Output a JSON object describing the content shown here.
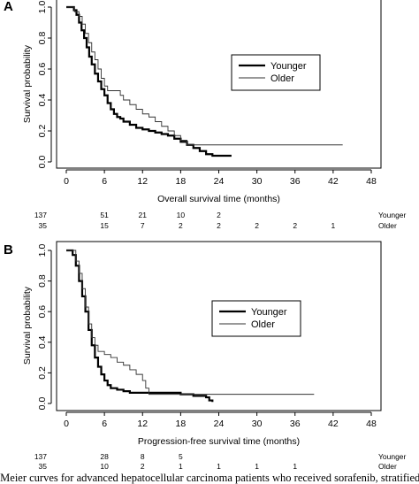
{
  "chart_data": [
    {
      "panel": "A",
      "type": "line",
      "xlabel": "Overall survival time (months)",
      "ylabel": "Survival probability",
      "xlim": [
        0,
        48
      ],
      "ylim": [
        0,
        1
      ],
      "xticks": [
        0,
        6,
        12,
        18,
        24,
        30,
        36,
        42,
        48
      ],
      "yticks": [
        "0.0",
        "0.2",
        "0.4",
        "0.6",
        "0.8",
        "1.0"
      ],
      "legend": {
        "position": "top-right"
      },
      "series": [
        {
          "name": "Younger",
          "style": "thick",
          "color": "#000000",
          "points": [
            [
              0,
              1
            ],
            [
              1,
              1
            ],
            [
              1.2,
              0.98
            ],
            [
              1.6,
              0.95
            ],
            [
              2,
              0.9
            ],
            [
              2.4,
              0.85
            ],
            [
              2.8,
              0.8
            ],
            [
              3.2,
              0.74
            ],
            [
              3.6,
              0.68
            ],
            [
              4,
              0.63
            ],
            [
              4.5,
              0.57
            ],
            [
              5,
              0.52
            ],
            [
              5.5,
              0.47
            ],
            [
              6,
              0.43
            ],
            [
              6.5,
              0.38
            ],
            [
              7,
              0.34
            ],
            [
              7.5,
              0.31
            ],
            [
              8,
              0.29
            ],
            [
              8.5,
              0.28
            ],
            [
              9,
              0.26
            ],
            [
              10,
              0.24
            ],
            [
              11,
              0.22
            ],
            [
              12,
              0.21
            ],
            [
              13,
              0.2
            ],
            [
              14,
              0.19
            ],
            [
              15,
              0.18
            ],
            [
              16,
              0.17
            ],
            [
              17,
              0.15
            ],
            [
              18,
              0.13
            ],
            [
              19,
              0.11
            ],
            [
              20,
              0.09
            ],
            [
              21,
              0.07
            ],
            [
              22,
              0.05
            ],
            [
              23,
              0.04
            ],
            [
              26,
              0.04
            ]
          ]
        },
        {
          "name": "Older",
          "style": "thin",
          "color": "#333333",
          "points": [
            [
              0,
              1
            ],
            [
              1,
              1
            ],
            [
              1.3,
              0.97
            ],
            [
              2,
              0.94
            ],
            [
              2.5,
              0.89
            ],
            [
              3,
              0.83
            ],
            [
              3.5,
              0.77
            ],
            [
              4,
              0.71
            ],
            [
              4.5,
              0.66
            ],
            [
              5,
              0.6
            ],
            [
              5.5,
              0.54
            ],
            [
              6,
              0.49
            ],
            [
              6.5,
              0.46
            ],
            [
              8,
              0.46
            ],
            [
              8.5,
              0.43
            ],
            [
              9,
              0.4
            ],
            [
              10,
              0.37
            ],
            [
              11,
              0.34
            ],
            [
              12,
              0.31
            ],
            [
              13,
              0.29
            ],
            [
              14,
              0.26
            ],
            [
              15,
              0.23
            ],
            [
              16,
              0.2
            ],
            [
              17,
              0.17
            ],
            [
              18,
              0.14
            ],
            [
              19,
              0.11
            ],
            [
              43.5,
              0.11
            ]
          ]
        }
      ],
      "risk_table": {
        "labels": [
          "Younger",
          "Older"
        ],
        "times": [
          0,
          6,
          12,
          18,
          24,
          30,
          36,
          42
        ],
        "rows": [
          [
            "137",
            "51",
            "21",
            "10",
            "2",
            "",
            "",
            ""
          ],
          [
            "35",
            "15",
            "7",
            "2",
            "2",
            "2",
            "2",
            "1"
          ]
        ]
      }
    },
    {
      "panel": "B",
      "type": "line",
      "xlabel": "Progression-free survival time (months)",
      "ylabel": "Survival probability",
      "xlim": [
        0,
        48
      ],
      "ylim": [
        0,
        1
      ],
      "xticks": [
        0,
        6,
        12,
        18,
        24,
        30,
        36,
        42,
        48
      ],
      "yticks": [
        "0.0",
        "0.2",
        "0.4",
        "0.6",
        "0.8",
        "1.0"
      ],
      "legend": {
        "position": "center-right"
      },
      "series": [
        {
          "name": "Younger",
          "style": "thick",
          "color": "#000000",
          "points": [
            [
              0,
              1
            ],
            [
              0.5,
              1
            ],
            [
              1,
              0.97
            ],
            [
              1.5,
              0.9
            ],
            [
              2,
              0.8
            ],
            [
              2.5,
              0.7
            ],
            [
              3,
              0.6
            ],
            [
              3.5,
              0.48
            ],
            [
              4,
              0.38
            ],
            [
              4.5,
              0.3
            ],
            [
              5,
              0.24
            ],
            [
              5.5,
              0.19
            ],
            [
              6,
              0.15
            ],
            [
              6.5,
              0.12
            ],
            [
              7,
              0.1
            ],
            [
              8,
              0.09
            ],
            [
              9,
              0.08
            ],
            [
              10,
              0.07
            ],
            [
              14,
              0.07
            ],
            [
              17,
              0.07
            ],
            [
              18,
              0.06
            ],
            [
              20,
              0.05
            ],
            [
              22,
              0.04
            ],
            [
              22.5,
              0.02
            ],
            [
              23,
              0.01
            ]
          ]
        },
        {
          "name": "Older",
          "style": "thin",
          "color": "#333333",
          "points": [
            [
              0,
              1
            ],
            [
              1,
              1
            ],
            [
              1.5,
              0.93
            ],
            [
              2,
              0.85
            ],
            [
              2.5,
              0.75
            ],
            [
              3,
              0.63
            ],
            [
              3.5,
              0.52
            ],
            [
              4,
              0.43
            ],
            [
              4.5,
              0.38
            ],
            [
              5,
              0.34
            ],
            [
              6,
              0.32
            ],
            [
              7,
              0.3
            ],
            [
              8,
              0.27
            ],
            [
              9,
              0.25
            ],
            [
              10,
              0.22
            ],
            [
              11,
              0.19
            ],
            [
              12,
              0.15
            ],
            [
              12.5,
              0.1
            ],
            [
              13,
              0.06
            ],
            [
              39,
              0.06
            ]
          ]
        }
      ],
      "risk_table": {
        "labels": [
          "Younger",
          "Older"
        ],
        "times": [
          0,
          6,
          12,
          18,
          24,
          30,
          36,
          42
        ],
        "rows": [
          [
            "137",
            "28",
            "8",
            "5",
            "",
            "",
            "",
            ""
          ],
          [
            "35",
            "10",
            "2",
            "1",
            "1",
            "1",
            "1",
            ""
          ]
        ]
      }
    }
  ],
  "caption": "-Meier curves for advanced hepatocellular carcinoma patients who received sorafenib, stratified"
}
